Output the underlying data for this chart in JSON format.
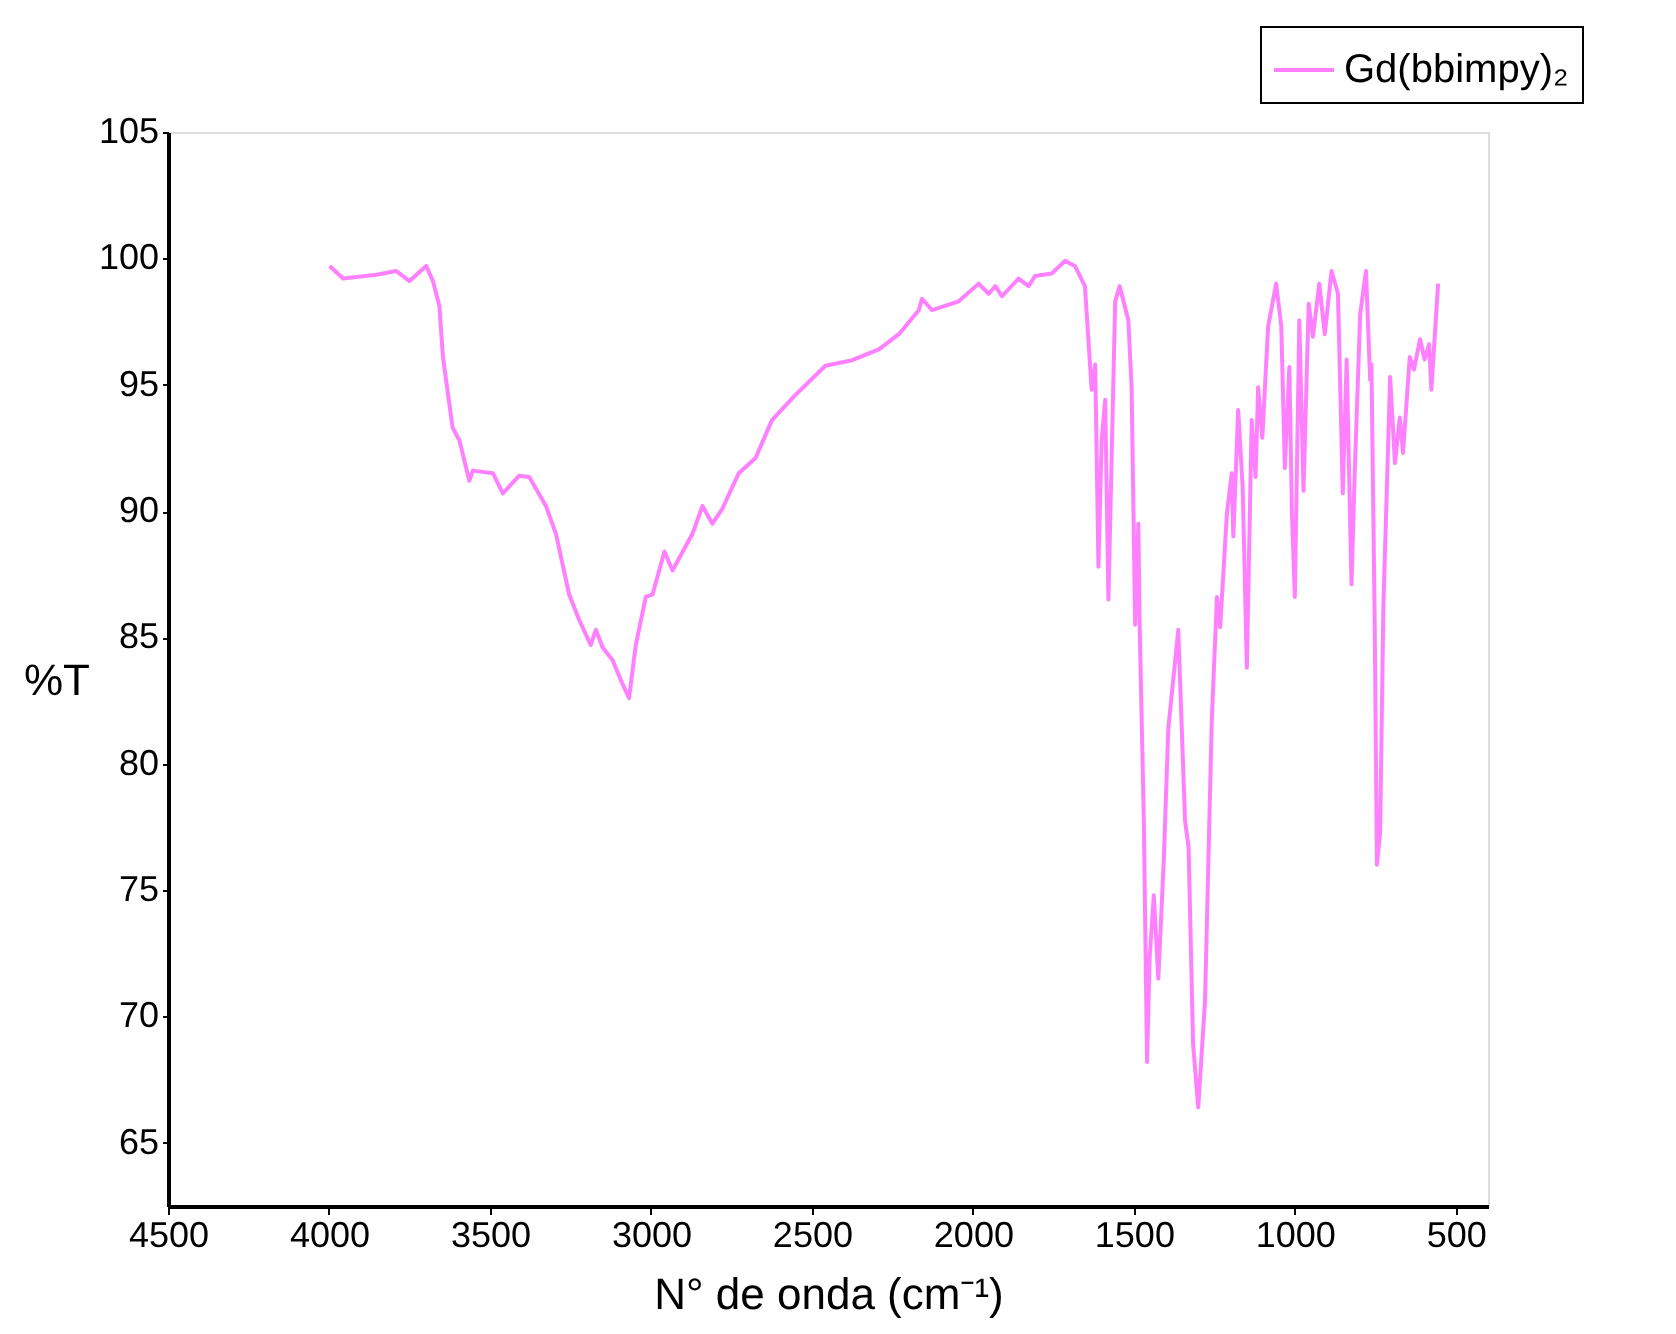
{
  "chart_data": {
    "type": "line",
    "xlabel": "N° de onda (cm⁻¹)",
    "ylabel": "%T",
    "xlim": [
      4500,
      400
    ],
    "ylim": [
      62.5,
      105
    ],
    "xticks": [
      4500,
      4000,
      3500,
      3000,
      2500,
      2000,
      1500,
      1000,
      500
    ],
    "yticks": [
      65,
      70,
      75,
      80,
      85,
      90,
      95,
      100,
      105
    ],
    "grid": false,
    "legend": "top right",
    "marker": "none",
    "line_style": "solid",
    "series": [
      {
        "name": "Gd(bbimpy)₂",
        "color": "#ff80ff",
        "x": [
          3998,
          3956,
          3853,
          3791,
          3750,
          3698,
          3677,
          3657,
          3646,
          3616,
          3595,
          3564,
          3553,
          3491,
          3460,
          3409,
          3378,
          3326,
          3295,
          3254,
          3223,
          3187,
          3171,
          3150,
          3119,
          3088,
          3068,
          3047,
          3016,
          2995,
          2958,
          2933,
          2871,
          2840,
          2809,
          2778,
          2727,
          2675,
          2624,
          2551,
          2458,
          2375,
          2292,
          2230,
          2168,
          2158,
          2127,
          2044,
          1982,
          1951,
          1930,
          1910,
          1858,
          1827,
          1807,
          1755,
          1714,
          1683,
          1652,
          1631,
          1620,
          1610,
          1600,
          1589,
          1579,
          1558,
          1544,
          1517,
          1507,
          1496,
          1486,
          1482,
          1469,
          1459,
          1451,
          1438,
          1424,
          1407,
          1393,
          1362,
          1341,
          1330,
          1316,
          1300,
          1279,
          1258,
          1242,
          1232,
          1211,
          1196,
          1191,
          1176,
          1162,
          1149,
          1134,
          1122,
          1114,
          1101,
          1083,
          1058,
          1042,
          1031,
          1017,
          1009,
          1000,
          986,
          973,
          957,
          944,
          924,
          907,
          886,
          866,
          851,
          839,
          824,
          814,
          797,
          779,
          766,
          762,
          752,
          745,
          735,
          725,
          704,
          689,
          674,
          664,
          643,
          630,
          611,
          597,
          583,
          576,
          555
        ],
        "values": [
          99.7,
          99.2,
          99.35,
          99.5,
          99.1,
          99.7,
          99.1,
          98.1,
          96.1,
          93.3,
          92.8,
          91.2,
          91.6,
          91.5,
          90.7,
          91.4,
          91.35,
          90.2,
          89.1,
          86.7,
          85.7,
          84.7,
          85.3,
          84.6,
          84.1,
          83.15,
          82.6,
          84.7,
          86.6,
          86.7,
          88.4,
          87.65,
          89.1,
          90.2,
          89.5,
          90.1,
          91.5,
          92.1,
          93.6,
          94.6,
          95.75,
          95.97,
          96.4,
          97.0,
          97.95,
          98.4,
          97.95,
          98.3,
          99.0,
          98.6,
          98.9,
          98.5,
          99.2,
          98.9,
          99.3,
          99.4,
          99.9,
          99.7,
          98.9,
          94.8,
          95.8,
          87.8,
          92.8,
          94.4,
          86.5,
          98.3,
          98.9,
          97.55,
          94.9,
          85.5,
          89.5,
          85.5,
          77.75,
          68.2,
          72.3,
          74.8,
          71.5,
          76.2,
          81.4,
          85.3,
          77.75,
          76.7,
          68.9,
          66.4,
          70.6,
          81.7,
          86.6,
          85.4,
          89.9,
          91.5,
          89.0,
          94.0,
          90.95,
          83.8,
          93.6,
          91.35,
          94.9,
          92.9,
          97.3,
          99.0,
          97.3,
          91.7,
          95.7,
          89.9,
          86.6,
          97.55,
          90.8,
          98.2,
          96.9,
          99.0,
          97.0,
          99.5,
          98.6,
          90.7,
          96.0,
          87.1,
          91.5,
          97.8,
          99.5,
          95.2,
          95.8,
          85.7,
          76.0,
          77.3,
          86.2,
          95.3,
          91.9,
          93.7,
          92.3,
          96.1,
          95.6,
          96.8,
          96.0,
          96.6,
          94.8,
          99.0
        ]
      }
    ]
  }
}
